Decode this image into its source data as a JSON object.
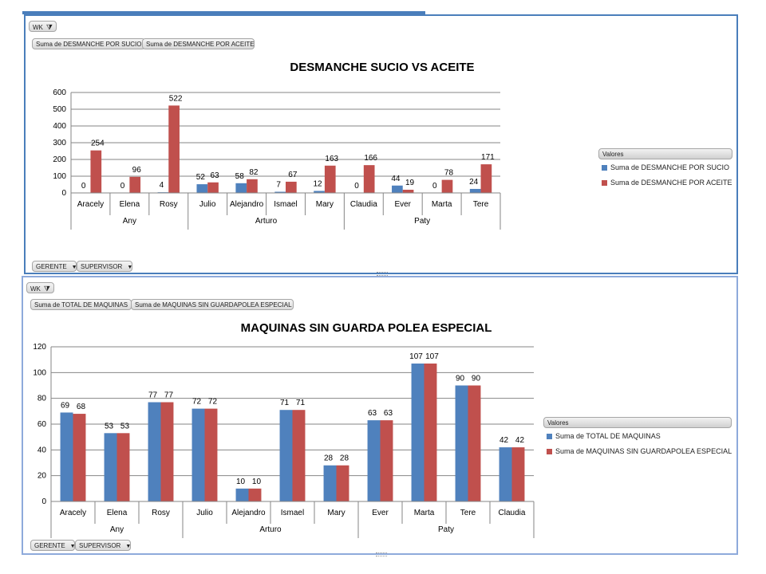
{
  "colors": {
    "series1": "#4f81bd",
    "series2": "#c0504d",
    "grid": "#868686",
    "axis": "#868686"
  },
  "chart1": {
    "filter_label": "WK",
    "value_pills": [
      "Suma de DESMANCHE POR SUCIO",
      "Suma de DESMANCHE POR ACEITE"
    ],
    "row_pills": [
      "GERENTE",
      "SUPERVISOR"
    ],
    "legend_title": "Valores"
  },
  "chart2": {
    "filter_label": "WK",
    "value_pills": [
      "Suma de TOTAL DE MAQUINAS",
      "Suma de MAQUINAS SIN GUARDAPOLEA ESPECIAL"
    ],
    "row_pills": [
      "GERENTE",
      "SUPERVISOR"
    ],
    "legend_title": "Valores"
  },
  "chart_data": [
    {
      "type": "bar",
      "title": "DESMANCHE SUCIO VS ACEITE",
      "categories": [
        "Aracely",
        "Elena",
        "Rosy",
        "Julio",
        "Alejandro",
        "Ismael",
        "Mary",
        "Claudia",
        "Ever",
        "Marta",
        "Tere"
      ],
      "groups": [
        {
          "name": "Any",
          "count": 3
        },
        {
          "name": "Arturo",
          "count": 4
        },
        {
          "name": "Paty",
          "count": 4
        }
      ],
      "series": [
        {
          "name": "Suma de DESMANCHE POR SUCIO",
          "values": [
            0,
            0,
            4,
            52,
            58,
            7,
            12,
            0,
            44,
            0,
            24
          ]
        },
        {
          "name": "Suma de DESMANCHE POR ACEITE",
          "values": [
            254,
            96,
            522,
            63,
            82,
            67,
            163,
            166,
            19,
            78,
            171
          ]
        }
      ],
      "ylim": [
        0,
        600
      ],
      "yticks": [
        0,
        100,
        200,
        300,
        400,
        500,
        600
      ],
      "grid": true,
      "legend": "right"
    },
    {
      "type": "bar",
      "title": "MAQUINAS SIN GUARDA POLEA ESPECIAL",
      "categories": [
        "Aracely",
        "Elena",
        "Rosy",
        "Julio",
        "Alejandro",
        "Ismael",
        "Mary",
        "Ever",
        "Marta",
        "Tere",
        "Claudia"
      ],
      "groups": [
        {
          "name": "Any",
          "count": 3
        },
        {
          "name": "Arturo",
          "count": 4
        },
        {
          "name": "Paty",
          "count": 4
        }
      ],
      "series": [
        {
          "name": "Suma de TOTAL DE MAQUINAS",
          "values": [
            69,
            53,
            77,
            72,
            10,
            71,
            28,
            63,
            107,
            90,
            42
          ]
        },
        {
          "name": "Suma de MAQUINAS SIN GUARDAPOLEA ESPECIAL",
          "values": [
            68,
            53,
            77,
            72,
            10,
            71,
            28,
            63,
            107,
            90,
            42
          ]
        }
      ],
      "ylim": [
        0,
        120
      ],
      "yticks": [
        0,
        20,
        40,
        60,
        80,
        100,
        120
      ],
      "grid": true,
      "legend": "right"
    }
  ]
}
